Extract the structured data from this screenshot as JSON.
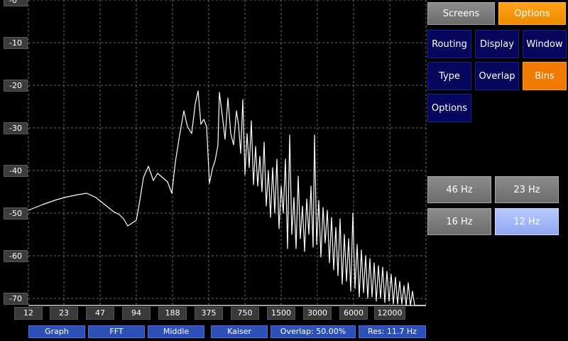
{
  "y_axis": {
    "labels": [
      "-0",
      "-10",
      "-20",
      "-30",
      "-40",
      "-50",
      "-60",
      "-70"
    ]
  },
  "x_axis": {
    "labels": [
      "12",
      "23",
      "47",
      "94",
      "188",
      "375",
      "750",
      "1500",
      "3000",
      "6000",
      "12000"
    ]
  },
  "status_bar": {
    "graph": "Graph",
    "fft": "FFT",
    "position": "Middle",
    "window": "Kaiser",
    "overlap": "Overlap: 50.00%",
    "resolution": "Res: 11.7 Hz"
  },
  "menu": {
    "screens": "Screens",
    "options": "Options",
    "routing": "Routing",
    "display": "Display",
    "window": "Window",
    "type": "Type",
    "overlap": "Overlap",
    "bins": "Bins",
    "options2": "Options"
  },
  "bins": {
    "b46": "46 Hz",
    "b23": "23 Hz",
    "b16": "16 Hz",
    "b12": "12 Hz",
    "selected": "12 Hz"
  },
  "colors": {
    "background": "#000000",
    "grid": "#6a6a6a",
    "trace": "#ffffff",
    "accent_orange": "#f08a00",
    "navy": "#06065c",
    "status_blue": "#2c50b8",
    "selected_bin": "#a6baf8"
  }
}
